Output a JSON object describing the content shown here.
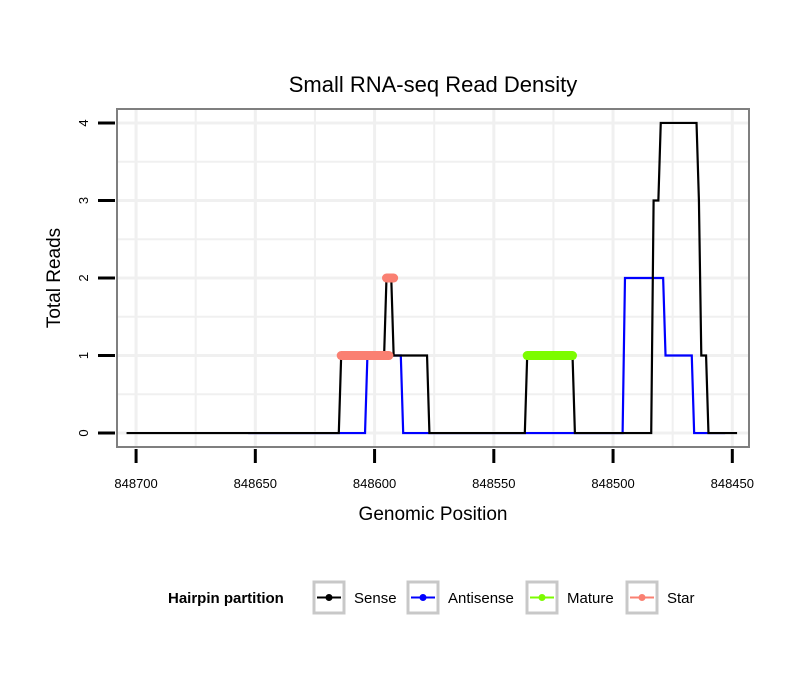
{
  "chart_data": {
    "type": "line",
    "title": "Small RNA-seq Read Density",
    "xlabel": "Genomic Position",
    "ylabel": "Total Reads",
    "x_reversed": true,
    "xlim": [
      848708,
      848443
    ],
    "ylim": [
      -0.18,
      4.18
    ],
    "x_ticks": [
      848700,
      848650,
      848600,
      848550,
      848500,
      848450
    ],
    "x_tick_labels": [
      "848700",
      "848650",
      "848600",
      "848550",
      "848500",
      "848450"
    ],
    "y_ticks": [
      0,
      1,
      2,
      3,
      4
    ],
    "y_tick_labels": [
      "0",
      "1",
      "2",
      "3",
      "4"
    ],
    "grid": true,
    "legend": {
      "title": "Hairpin partition",
      "position": "bottom",
      "entries": [
        {
          "name": "Sense",
          "color": "#000000"
        },
        {
          "name": "Antisense",
          "color": "#0000ff"
        },
        {
          "name": "Mature",
          "color": "#7cfc00"
        },
        {
          "name": "Star",
          "color": "#fa8072"
        }
      ]
    },
    "series": [
      {
        "name": "Antisense",
        "color": "#0000ff",
        "style": "line",
        "x": [
          848653,
          848620,
          848619,
          848604,
          848603,
          848589,
          848588,
          848557,
          848556,
          848537,
          848536,
          848525,
          848524,
          848520,
          848519,
          848496,
          848495,
          848479,
          848478,
          848467,
          848466,
          848461,
          848460,
          848453
        ],
        "y": [
          0,
          0,
          0,
          0,
          1,
          1,
          0,
          0,
          0,
          0,
          0,
          0,
          0,
          0,
          0,
          0,
          2,
          2,
          1,
          1,
          0,
          0,
          0,
          0
        ]
      },
      {
        "name": "Sense",
        "color": "#000000",
        "style": "line",
        "x": [
          848704,
          848615,
          848614,
          848596,
          848595,
          848593,
          848592,
          848578,
          848577,
          848537,
          848536,
          848517,
          848516,
          848484,
          848483,
          848481,
          848480,
          848465,
          848464,
          848464,
          848463,
          848461,
          848460,
          848459,
          848458,
          848448
        ],
        "y": [
          0,
          0,
          1,
          1,
          2,
          2,
          1,
          1,
          0,
          0,
          1,
          1,
          0,
          0,
          3,
          3,
          4,
          4,
          3,
          3,
          1,
          1,
          0,
          0,
          0,
          0
        ]
      },
      {
        "name": "Mature",
        "color": "#7cfc00",
        "style": "thick",
        "x": [
          848536,
          848517
        ],
        "y": [
          1,
          1
        ]
      },
      {
        "name": "Star",
        "color": "#fa8072",
        "style": "thick",
        "x": [
          848614,
          848594
        ],
        "y": [
          1,
          1
        ]
      },
      {
        "name": "Star",
        "color": "#fa8072",
        "style": "thick",
        "x": [
          848595,
          848592
        ],
        "y": [
          2,
          2
        ]
      }
    ]
  }
}
